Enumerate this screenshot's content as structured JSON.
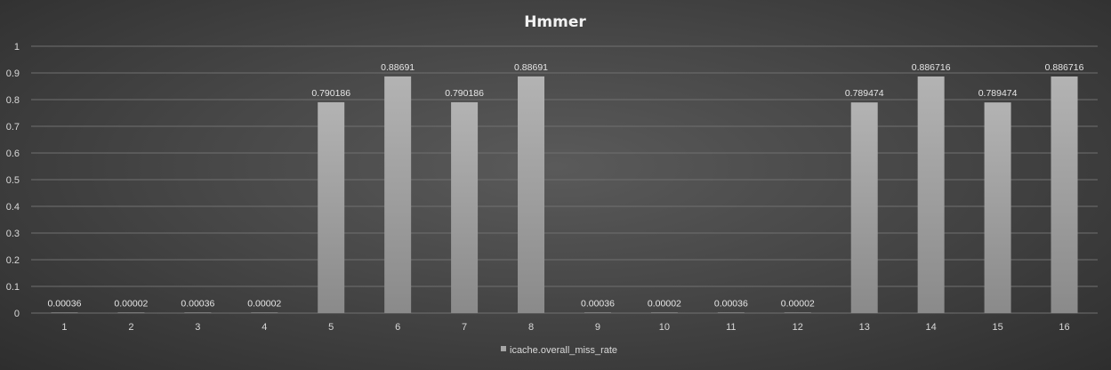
{
  "chart_data": {
    "type": "bar",
    "title": "Hmmer",
    "xlabel": "",
    "ylabel": "",
    "categories": [
      "1",
      "2",
      "3",
      "4",
      "5",
      "6",
      "7",
      "8",
      "9",
      "10",
      "11",
      "12",
      "13",
      "14",
      "15",
      "16"
    ],
    "series": [
      {
        "name": "icache.overall_miss_rate",
        "values": [
          0.00036,
          2e-05,
          0.00036,
          2e-05,
          0.790186,
          0.88691,
          0.790186,
          0.88691,
          0.00036,
          2e-05,
          0.00036,
          2e-05,
          0.789474,
          0.886716,
          0.789474,
          0.886716
        ],
        "data_labels": [
          "0.00036",
          "0.00002",
          "0.00036",
          "0.00002",
          "0.790186",
          "0.88691",
          "0.790186",
          "0.88691",
          "0.00036",
          "0.00002",
          "0.00036",
          "0.00002",
          "0.789474",
          "0.886716",
          "0.789474",
          "0.886716"
        ]
      }
    ],
    "ylim": [
      0,
      1
    ],
    "yticks": [
      "0",
      "0.1",
      "0.2",
      "0.3",
      "0.4",
      "0.5",
      "0.6",
      "0.7",
      "0.8",
      "0.9",
      "1"
    ],
    "grid": true,
    "legend": "bottom-center",
    "colors": {
      "bar_top": "#b3b3b3",
      "bar_bottom": "#8a8a8a",
      "legend_swatch": "#a6a6a6"
    }
  }
}
